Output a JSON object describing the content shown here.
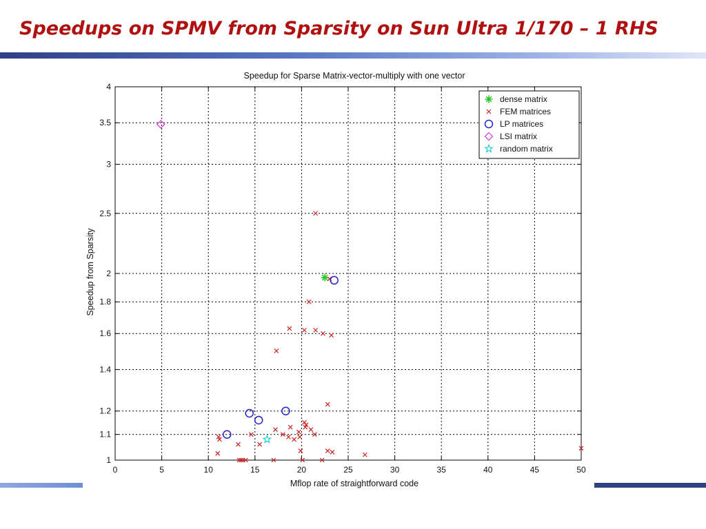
{
  "slide": {
    "title": "Speedups on SPMV from Sparsity on Sun Ultra 1/170 – 1 RHS"
  },
  "chart_data": {
    "type": "scatter",
    "title": "Speedup for Sparse Matrix-vector-multiply with one vector",
    "xlabel": "Mflop rate of straightforward code",
    "ylabel": "Speedup from Sparsity",
    "xlim": [
      0,
      50
    ],
    "ylim": [
      1,
      4
    ],
    "y_scale": "log",
    "xticks": [
      0,
      5,
      10,
      15,
      20,
      25,
      30,
      35,
      40,
      45,
      50
    ],
    "yticks": [
      1,
      1.1,
      1.2,
      1.4,
      1.6,
      1.8,
      2,
      2.5,
      3,
      3.5,
      4
    ],
    "ytick_labels": [
      "1",
      "1.1",
      "1.2",
      "1.4",
      "1.6",
      "1.8",
      "2",
      "2.5",
      "3",
      "3.5",
      "4"
    ],
    "grid": true,
    "legend_position": "top-right",
    "series": [
      {
        "name": "dense matrix",
        "marker": "asterisk",
        "color": "#22cc22",
        "points": [
          [
            22.5,
            1.97
          ]
        ]
      },
      {
        "name": "FEM matrices",
        "marker": "x",
        "color": "#cc2222",
        "points": [
          [
            21.5,
            2.5
          ],
          [
            20.8,
            1.8
          ],
          [
            18.7,
            1.63
          ],
          [
            20.3,
            1.62
          ],
          [
            21.5,
            1.62
          ],
          [
            22.3,
            1.6
          ],
          [
            23.2,
            1.59
          ],
          [
            17.3,
            1.5
          ],
          [
            23.0,
            1.96
          ],
          [
            22.8,
            1.23
          ],
          [
            20.3,
            1.15
          ],
          [
            20.5,
            1.14
          ],
          [
            20.4,
            1.13
          ],
          [
            17.2,
            1.12
          ],
          [
            18.0,
            1.1
          ],
          [
            18.6,
            1.09
          ],
          [
            19.2,
            1.08
          ],
          [
            19.7,
            1.11
          ],
          [
            21.0,
            1.12
          ],
          [
            21.4,
            1.1
          ],
          [
            19.8,
            1.09
          ],
          [
            18.8,
            1.13
          ],
          [
            14.6,
            1.1
          ],
          [
            11.2,
            1.08
          ],
          [
            11.1,
            1.09
          ],
          [
            13.2,
            1.06
          ],
          [
            15.5,
            1.06
          ],
          [
            19.9,
            1.035
          ],
          [
            11.0,
            1.025
          ],
          [
            22.8,
            1.035
          ],
          [
            23.3,
            1.03
          ],
          [
            26.8,
            1.02
          ],
          [
            50.0,
            1.045
          ],
          [
            13.3,
            1.0
          ],
          [
            13.5,
            1.0
          ],
          [
            13.7,
            1.0
          ],
          [
            14.0,
            1.0
          ],
          [
            17.0,
            1.0
          ],
          [
            20.1,
            1.0
          ],
          [
            22.2,
            1.0
          ]
        ]
      },
      {
        "name": "LP matrices",
        "marker": "circle",
        "color": "#2222cc",
        "points": [
          [
            23.5,
            1.95
          ],
          [
            14.4,
            1.19
          ],
          [
            15.4,
            1.16
          ],
          [
            18.3,
            1.2
          ],
          [
            12.0,
            1.1
          ]
        ]
      },
      {
        "name": "LSI matrix",
        "marker": "diamond",
        "color": "#dd33dd",
        "points": [
          [
            4.9,
            3.48
          ]
        ]
      },
      {
        "name": "random matrix",
        "marker": "star",
        "color": "#22cccc",
        "points": [
          [
            16.3,
            1.08
          ]
        ]
      }
    ]
  }
}
